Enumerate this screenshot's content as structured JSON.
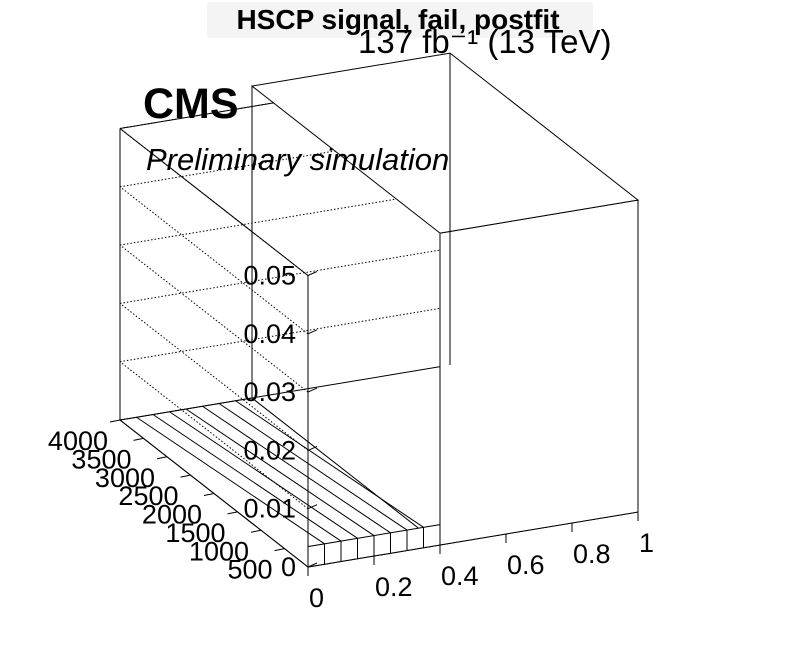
{
  "header": {
    "title": "HSCP signal, fail, postfit",
    "lumi": "137 fb⁻¹ (13 TeV)",
    "experiment": "CMS",
    "status": "Preliminary simulation"
  },
  "chart_data": {
    "type": "lego3d",
    "title": "HSCP signal, fail, postfit",
    "x_axis": {
      "ticks": [
        "0",
        "0.2",
        "0.4",
        "0.6",
        "0.8",
        "1"
      ],
      "range": [
        0,
        1
      ]
    },
    "y_axis": {
      "ticks": [
        "500",
        "1000",
        "1500",
        "2000",
        "2500",
        "3000",
        "3500",
        "4000"
      ],
      "range": [
        0,
        4000
      ]
    },
    "z_axis": {
      "ticks": [
        "0",
        "0.01",
        "0.02",
        "0.03",
        "0.04",
        "0.05"
      ],
      "range": [
        0,
        0.05
      ]
    },
    "bins": [
      {
        "x": [
          0,
          0.4
        ],
        "y": [
          0,
          4000
        ],
        "z": 0.0
      },
      {
        "x": [
          0.4,
          1
        ],
        "y": [
          0,
          4000
        ],
        "z": 0.0535
      }
    ],
    "x_divisions": [
      0,
      0.05,
      0.1,
      0.15,
      0.2,
      0.25,
      0.3,
      0.35,
      0.4
    ],
    "grid": true
  }
}
